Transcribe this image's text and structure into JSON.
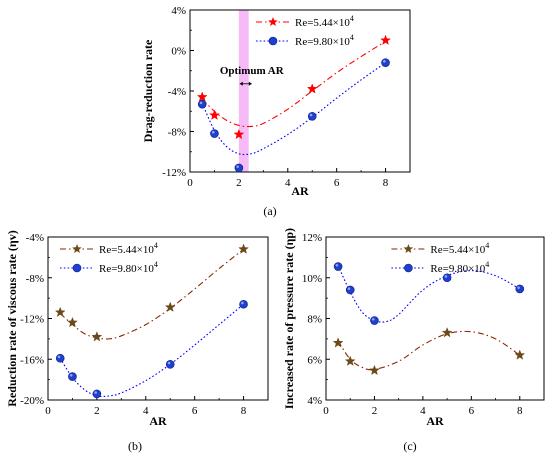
{
  "chart_data": [
    {
      "id": "a",
      "type": "line",
      "caption": "(a)",
      "xlabel": "AR",
      "ylabel": "Drag-reduction rate",
      "xlim": [
        0,
        9
      ],
      "ylim": [
        -12,
        4
      ],
      "xticks": [
        0,
        2,
        4,
        6,
        8
      ],
      "yticks": [
        -12,
        -8,
        -4,
        0,
        4
      ],
      "ytick_format": "percent",
      "legend_position": "top-right",
      "annotation": {
        "text": "Optimum AR",
        "x": 2.2
      },
      "highlight_band": {
        "x_from": 2.0,
        "x_to": 2.4,
        "color": "#ee82ee"
      },
      "series": [
        {
          "name": "Re=5.44×10",
          "name_sup": "4",
          "marker": "star",
          "line_style": "dashdot",
          "color": "#ff0000",
          "marker_color": "#ff0000",
          "x": [
            0.5,
            1,
            2,
            5,
            8
          ],
          "y": [
            -4.6,
            -6.4,
            -8.3,
            -3.8,
            1.0
          ],
          "fit": [
            [
              0.5,
              -4.8
            ],
            [
              1,
              -6.0
            ],
            [
              1.5,
              -6.9
            ],
            [
              2,
              -7.4
            ],
            [
              2.5,
              -7.5
            ],
            [
              3,
              -7.2
            ],
            [
              4,
              -5.8
            ],
            [
              5,
              -4.0
            ],
            [
              6,
              -2.2
            ],
            [
              7,
              -0.6
            ],
            [
              8,
              0.9
            ]
          ]
        },
        {
          "name": "Re=9.80×10",
          "name_sup": "4",
          "marker": "circle",
          "line_style": "dotted",
          "color": "#0000ff",
          "marker_color": "#1f3fd0",
          "x": [
            0.5,
            1,
            2,
            5,
            8
          ],
          "y": [
            -5.3,
            -8.2,
            -11.6,
            -6.5,
            -1.2
          ],
          "fit": [
            [
              0.5,
              -5.2
            ],
            [
              1,
              -7.9
            ],
            [
              1.5,
              -9.5
            ],
            [
              2,
              -10.2
            ],
            [
              2.5,
              -10.2
            ],
            [
              3,
              -9.7
            ],
            [
              4,
              -8.3
            ],
            [
              5,
              -6.6
            ],
            [
              6,
              -4.7
            ],
            [
              7,
              -2.9
            ],
            [
              8,
              -1.2
            ]
          ]
        }
      ]
    },
    {
      "id": "b",
      "type": "line",
      "caption": "(b)",
      "xlabel": "AR",
      "ylabel": "Reduction rate of viscous rate (ηv)",
      "xlim": [
        0,
        9
      ],
      "ylim": [
        -20,
        -4
      ],
      "xticks": [
        0,
        2,
        4,
        6,
        8
      ],
      "yticks": [
        -20,
        -16,
        -12,
        -8,
        -4
      ],
      "ytick_format": "percent",
      "legend_position": "top-left",
      "series": [
        {
          "name": "Re=5.44×10",
          "name_sup": "4",
          "marker": "star",
          "line_style": "dashdot",
          "color": "#8b2500",
          "marker_color": "#6b4a1a",
          "x": [
            0.5,
            1,
            2,
            5,
            8
          ],
          "y": [
            -11.4,
            -12.4,
            -13.8,
            -10.9,
            -5.2
          ],
          "fit": [
            [
              0.5,
              -11.5
            ],
            [
              1,
              -12.6
            ],
            [
              1.5,
              -13.5
            ],
            [
              2,
              -13.9
            ],
            [
              2.5,
              -14.0
            ],
            [
              3,
              -13.7
            ],
            [
              4,
              -12.6
            ],
            [
              5,
              -11.0
            ],
            [
              6,
              -9.1
            ],
            [
              7,
              -7.1
            ],
            [
              8,
              -5.2
            ]
          ]
        },
        {
          "name": "Re=9.80×10",
          "name_sup": "4",
          "marker": "circle",
          "line_style": "dotted",
          "color": "#0000ff",
          "marker_color": "#1f3fd0",
          "x": [
            0.5,
            1,
            2,
            5,
            8
          ],
          "y": [
            -15.9,
            -17.7,
            -19.4,
            -16.5,
            -10.6
          ],
          "fit": [
            [
              0.5,
              -15.9
            ],
            [
              1,
              -17.8
            ],
            [
              1.5,
              -19.0
            ],
            [
              2,
              -19.6
            ],
            [
              2.5,
              -19.6
            ],
            [
              3,
              -19.3
            ],
            [
              4,
              -18.1
            ],
            [
              5,
              -16.5
            ],
            [
              6,
              -14.6
            ],
            [
              7,
              -12.6
            ],
            [
              8,
              -10.6
            ]
          ]
        }
      ]
    },
    {
      "id": "c",
      "type": "line",
      "caption": "(c)",
      "xlabel": "AR",
      "ylabel": "Increased rate of pressure rate (ηp)",
      "xlim": [
        0,
        9
      ],
      "ylim": [
        4,
        12
      ],
      "xticks": [
        0,
        2,
        4,
        6,
        8
      ],
      "yticks": [
        4,
        6,
        8,
        10,
        12
      ],
      "ytick_format": "percent",
      "legend_position": "top-right",
      "series": [
        {
          "name": "Re=5.44×10",
          "name_sup": "4",
          "marker": "star",
          "line_style": "dashdot",
          "color": "#8b2500",
          "marker_color": "#6b4a1a",
          "x": [
            0.5,
            1,
            2,
            5,
            8
          ],
          "y": [
            6.8,
            5.9,
            5.45,
            7.3,
            6.2
          ],
          "fit": [
            [
              0.5,
              6.9
            ],
            [
              1,
              6.0
            ],
            [
              1.5,
              5.6
            ],
            [
              2,
              5.5
            ],
            [
              3,
              5.9
            ],
            [
              4,
              6.7
            ],
            [
              5,
              7.25
            ],
            [
              6,
              7.35
            ],
            [
              7,
              7.0
            ],
            [
              8,
              6.2
            ]
          ]
        },
        {
          "name": "Re=9.80×10",
          "name_sup": "4",
          "marker": "circle",
          "line_style": "dotted",
          "color": "#0000ff",
          "marker_color": "#1f3fd0",
          "x": [
            0.5,
            1,
            2,
            5,
            8
          ],
          "y": [
            10.55,
            9.4,
            7.9,
            10.0,
            9.45
          ],
          "fit": [
            [
              0.5,
              10.6
            ],
            [
              1,
              9.3
            ],
            [
              1.5,
              8.3
            ],
            [
              2,
              7.9
            ],
            [
              2.5,
              7.85
            ],
            [
              3,
              8.2
            ],
            [
              4,
              9.4
            ],
            [
              5,
              10.1
            ],
            [
              6,
              10.35
            ],
            [
              7,
              10.1
            ],
            [
              8,
              9.45
            ]
          ]
        }
      ]
    }
  ]
}
